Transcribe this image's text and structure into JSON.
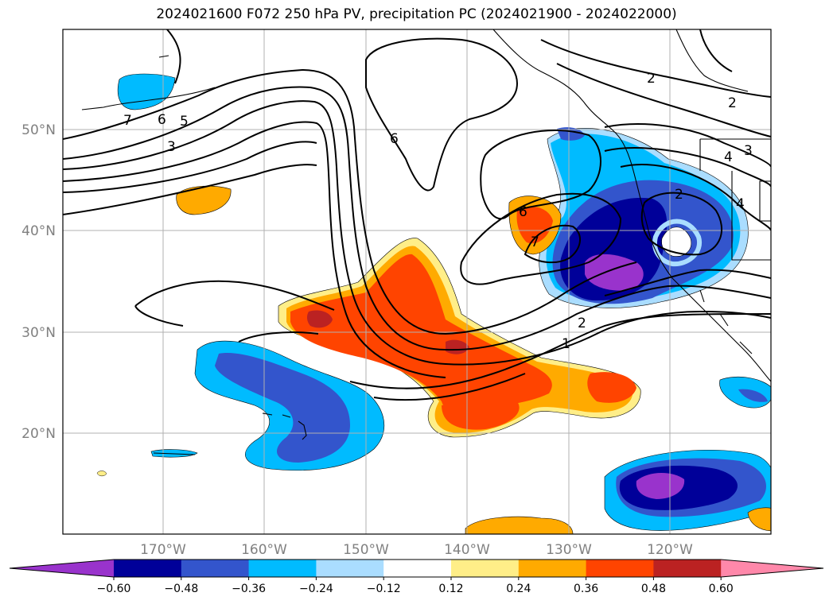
{
  "title": "2024021600 F072 250 hPa PV, precipitation PC (2024021900 - 2024022000)",
  "map": {
    "lon_labels": [
      "170°W",
      "160°W",
      "150°W",
      "140°W",
      "130°W",
      "120°W"
    ],
    "lat_labels": [
      "50°N",
      "40°N",
      "30°N",
      "20°N"
    ],
    "contour_labels": [
      "7",
      "6",
      "5",
      "3",
      "6",
      "6",
      "7",
      "2",
      "1",
      "2",
      "3",
      "4",
      "2",
      "4",
      "2"
    ]
  },
  "colorbar": {
    "colors": [
      "#9933cc",
      "#000099",
      "#3355cc",
      "#00bbff",
      "#aaddff",
      "#ffffff",
      "#ffee88",
      "#ffaa00",
      "#ff4400",
      "#bb2222",
      "#ff88aa"
    ],
    "labels": [
      "−0.60",
      "−0.48",
      "−0.36",
      "−0.24",
      "−0.12",
      "0.12",
      "0.24",
      "0.36",
      "0.48",
      "0.60"
    ]
  }
}
